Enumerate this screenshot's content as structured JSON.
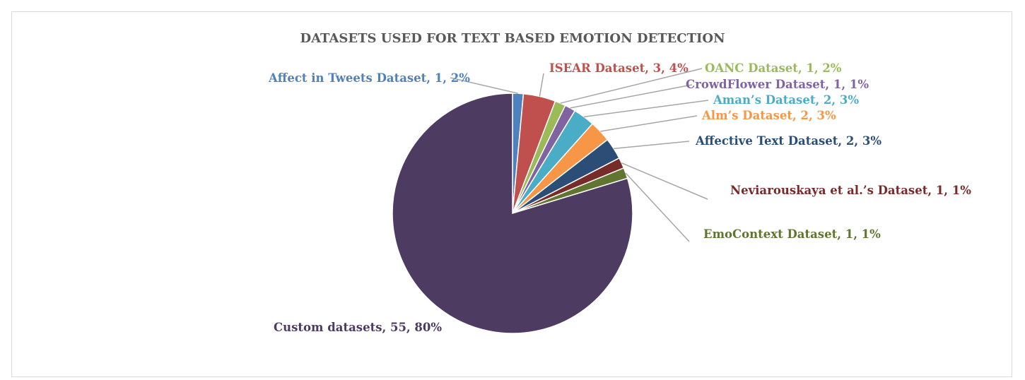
{
  "chart_data": {
    "type": "pie",
    "title": "DATASETS USED FOR TEXT BASED EMOTION DETECTION",
    "slices": [
      {
        "name": "Affect in Tweets Dataset",
        "value": 1,
        "percent": "2%",
        "label": "Affect in Tweets Dataset, 1, 2%",
        "color": "#4f81bd"
      },
      {
        "name": "ISEAR Dataset",
        "value": 3,
        "percent": "4%",
        "label": "ISEAR Dataset, 3, 4%",
        "color": "#c0504d"
      },
      {
        "name": "OANC Dataset",
        "value": 1,
        "percent": "2%",
        "label": "OANC Dataset, 1, 2%",
        "color": "#9bbb59"
      },
      {
        "name": "CrowdFlower Dataset",
        "value": 1,
        "percent": "1%",
        "label": "CrowdFlower Dataset, 1, 1%",
        "color": "#8064a2"
      },
      {
        "name": "Aman’s Dataset",
        "value": 2,
        "percent": "3%",
        "label": "Aman’s Dataset, 2, 3%",
        "color": "#4bacc6"
      },
      {
        "name": "Alm’s Dataset",
        "value": 2,
        "percent": "3%",
        "label": "Alm’s Dataset, 2, 3%",
        "color": "#f79646"
      },
      {
        "name": "Affective Text Dataset",
        "value": 2,
        "percent": "3%",
        "label": "Affective Text Dataset, 2, 3%",
        "color": "#2c4d75"
      },
      {
        "name": "Neviarouskaya et al.’s Dataset",
        "value": 1,
        "percent": "1%",
        "label": "Neviarouskaya et al.’s Dataset, 1, 1%",
        "color": "#772c2a"
      },
      {
        "name": "EmoContext Dataset",
        "value": 1,
        "percent": "1%",
        "label": "EmoContext Dataset, 1, 1%",
        "color": "#5f7530"
      },
      {
        "name": "Custom datasets",
        "value": 55,
        "percent": "80%",
        "label": "Custom datasets, 55, 80%",
        "color": "#4d3b62"
      }
    ],
    "legend": "none",
    "data_labels": "outside with leader lines"
  }
}
